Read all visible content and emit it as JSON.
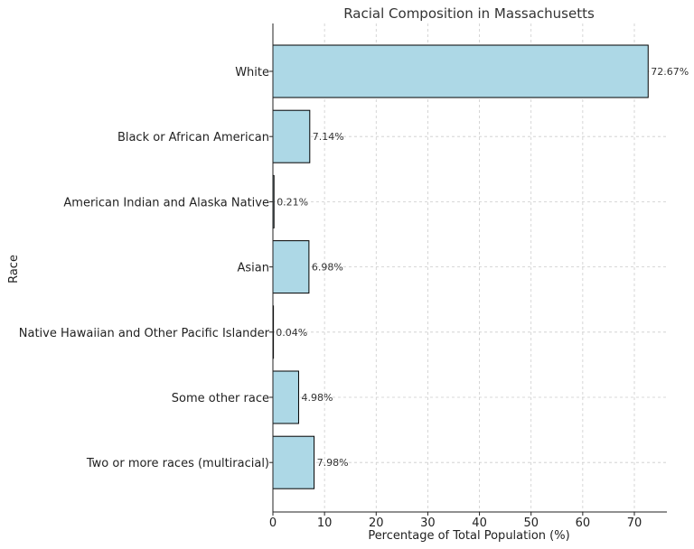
{
  "chart_data": {
    "type": "bar",
    "orientation": "horizontal",
    "title": "Racial Composition in Massachusetts",
    "xlabel": "Percentage of Total Population (%)",
    "ylabel": "Race",
    "categories": [
      "White",
      "Black or African American",
      "American Indian and Alaska Native",
      "Asian",
      "Native Hawaiian and Other Pacific Islander",
      "Some other race",
      "Two or more races (multiracial)"
    ],
    "values": [
      72.67,
      7.14,
      0.21,
      6.98,
      0.04,
      4.98,
      7.98
    ],
    "data_labels": [
      "72.67%",
      "7.14%",
      "0.21%",
      "6.98%",
      "0.04%",
      "4.98%",
      "7.98%"
    ],
    "xlim": [
      0,
      76.3
    ],
    "xticks": [
      0,
      10,
      20,
      30,
      40,
      50,
      60,
      70
    ],
    "grid": true,
    "colors": {
      "bar_fill": "#add8e6",
      "bar_edge": "#000000",
      "grid": "#cccccc"
    }
  }
}
